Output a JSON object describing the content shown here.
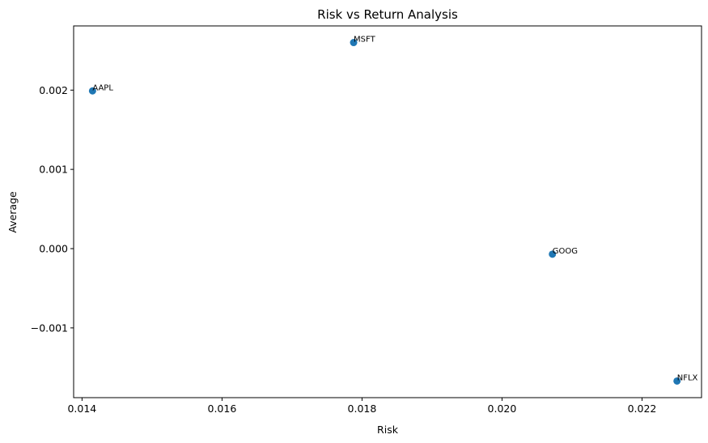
{
  "chart_data": {
    "type": "scatter",
    "title": "Risk vs Return Analysis",
    "xlabel": "Risk",
    "ylabel": "Average",
    "xlim": [
      0.01388,
      0.02285
    ],
    "ylim": [
      -0.00188,
      0.00281
    ],
    "x_ticks": [
      0.014,
      0.016,
      0.018,
      0.02,
      0.022
    ],
    "x_tick_labels": [
      "0.014",
      "0.016",
      "0.018",
      "0.020",
      "0.022"
    ],
    "y_ticks": [
      -0.001,
      0.0,
      0.001,
      0.002
    ],
    "y_tick_labels": [
      "−0.001",
      "0.000",
      "0.001",
      "0.002"
    ],
    "grid": false,
    "marker_color": "#1f77b4",
    "points": [
      {
        "label": "AAPL",
        "x": 0.01415,
        "y": 0.00199
      },
      {
        "label": "MSFT",
        "x": 0.01788,
        "y": 0.0026
      },
      {
        "label": "GOOG",
        "x": 0.02072,
        "y": -7e-05
      },
      {
        "label": "NFLX",
        "x": 0.0225,
        "y": -0.00167
      }
    ]
  }
}
